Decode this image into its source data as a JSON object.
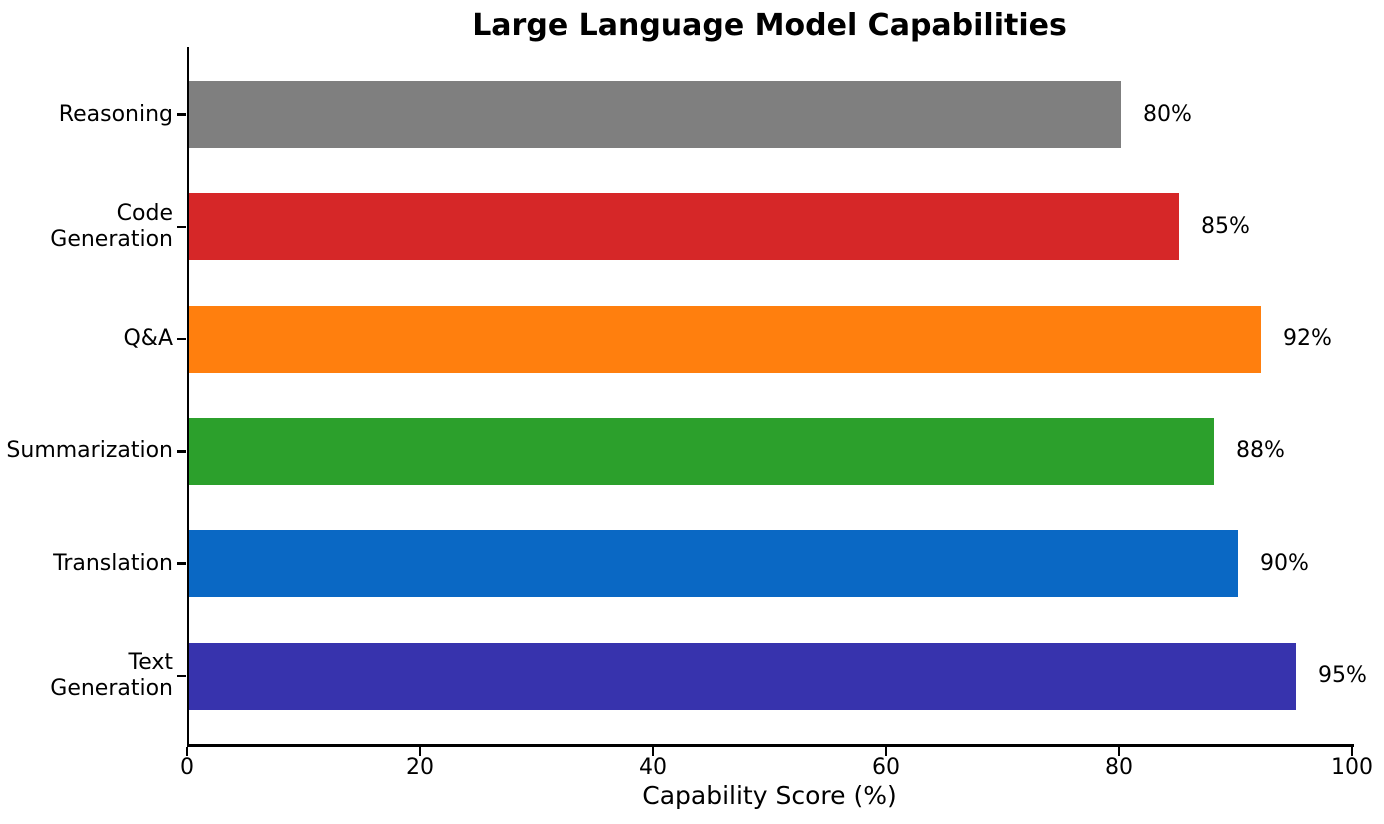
{
  "chart_data": {
    "type": "bar",
    "orientation": "horizontal",
    "title": "Large Language Model Capabilities",
    "xlabel": "Capability Score (%)",
    "ylabel": "",
    "categories": [
      "Reasoning",
      "Code Generation",
      "Q&A",
      "Summarization",
      "Translation",
      "Text Generation"
    ],
    "category_label_lines": [
      [
        "Reasoning"
      ],
      [
        "Code",
        "Generation"
      ],
      [
        "Q&A"
      ],
      [
        "Summarization"
      ],
      [
        "Translation"
      ],
      [
        "Text",
        "Generation"
      ]
    ],
    "values": [
      80,
      85,
      92,
      88,
      90,
      95
    ],
    "value_labels": [
      "80%",
      "85%",
      "92%",
      "88%",
      "90%",
      "95%"
    ],
    "bar_colors": [
      "#7f7f7f",
      "#d62728",
      "#ff7f0e",
      "#2ca02c",
      "#0a68c4",
      "#3733ad"
    ],
    "xlim": [
      0,
      100
    ],
    "xticks": [
      0,
      20,
      40,
      60,
      80,
      100
    ],
    "grid": false,
    "legend": null,
    "background_color": "#ffffff",
    "axis_color": "#000000",
    "text_color": "#000000"
  }
}
